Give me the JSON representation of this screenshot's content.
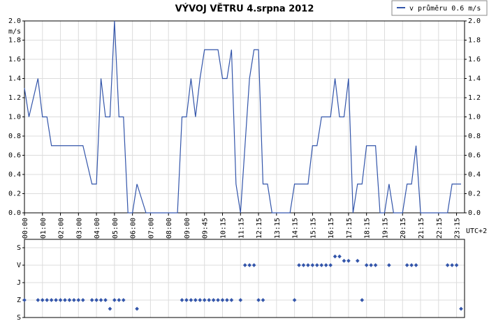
{
  "chart_data": [
    {
      "type": "line",
      "title": "VÝVOJ VĚTRU  4.srpna 2012",
      "y_unit": "m/s",
      "x_note": "UTC+2",
      "categories": [
        "00:00",
        null,
        null,
        null,
        "01:00",
        null,
        null,
        null,
        "02:00",
        null,
        null,
        null,
        "03:00",
        null,
        null,
        null,
        "04:00",
        null,
        null,
        null,
        "05:00",
        null,
        null,
        null,
        "06:00",
        null,
        null,
        null,
        "07:00",
        null,
        null,
        null,
        "08:00",
        null,
        null,
        null,
        "09:00",
        null,
        null,
        null,
        "09:45",
        null,
        null,
        null,
        "10:15",
        null,
        null,
        null,
        "11:15",
        null,
        null,
        null,
        "12:15",
        null,
        null,
        null,
        "13:15",
        null,
        null,
        null,
        "14:15",
        null,
        null,
        null,
        "15:15",
        null,
        null,
        null,
        "16:15",
        null,
        null,
        null,
        "17:15",
        null,
        null,
        null,
        "18:15",
        null,
        null,
        null,
        "19:15",
        null,
        null,
        null,
        "20:15",
        null,
        null,
        null,
        "21:15",
        null,
        null,
        null,
        "22:15",
        null,
        null,
        null,
        "23:15",
        null
      ],
      "series": [
        {
          "name": "v průměru 0.6 m/s",
          "color": "#3355aa",
          "values": [
            1.3,
            1.0,
            1.2,
            1.4,
            1.0,
            1.0,
            0.7,
            0.7,
            0.7,
            0.7,
            0.7,
            0.7,
            0.7,
            0.7,
            0.5,
            0.3,
            0.3,
            1.4,
            1.0,
            1.0,
            2.0,
            1.0,
            1.0,
            0.0,
            0.0,
            0.3,
            0.15,
            0.0,
            0.0,
            0.0,
            0.0,
            0.0,
            0.0,
            0.0,
            0.0,
            1.0,
            1.0,
            1.4,
            1.0,
            1.4,
            1.7,
            1.7,
            1.7,
            1.7,
            1.4,
            1.4,
            1.7,
            0.3,
            0.0,
            0.7,
            1.4,
            1.7,
            1.7,
            0.3,
            0.3,
            0.0,
            0.0,
            0.0,
            0.0,
            0.0,
            0.3,
            0.3,
            0.3,
            0.3,
            0.7,
            0.7,
            1.0,
            1.0,
            1.0,
            1.4,
            1.0,
            1.0,
            1.4,
            0.0,
            0.3,
            0.3,
            0.7,
            0.7,
            0.7,
            0.0,
            0.0,
            0.3,
            0.0,
            0.0,
            0.0,
            0.3,
            0.3,
            0.7,
            0.0,
            0.0,
            0.0,
            0.0,
            0.0,
            0.0,
            0.0,
            0.3,
            0.3,
            0.3
          ]
        }
      ],
      "ylim": [
        0,
        2
      ],
      "yticks": [
        {
          "value": 0,
          "label": "0.0"
        },
        0.2,
        0.4,
        0.6,
        0.8,
        {
          "value": 1,
          "label": "1.0"
        },
        1.2,
        1.4,
        1.6,
        1.8,
        {
          "value": 2,
          "label": "2.0"
        }
      ],
      "grid": true,
      "legend": "top-right"
    },
    {
      "type": "scatter",
      "color": "#3355aa",
      "values": [
        270,
        null,
        null,
        270,
        270,
        270,
        270,
        270,
        270,
        270,
        270,
        270,
        270,
        270,
        null,
        270,
        270,
        270,
        270,
        315,
        270,
        270,
        270,
        null,
        null,
        315,
        null,
        null,
        null,
        null,
        null,
        null,
        null,
        null,
        null,
        270,
        270,
        270,
        270,
        270,
        270,
        270,
        270,
        270,
        270,
        270,
        270,
        null,
        270,
        90,
        90,
        90,
        270,
        270,
        null,
        null,
        null,
        null,
        null,
        null,
        270,
        90,
        90,
        90,
        90,
        90,
        90,
        90,
        90,
        45,
        45,
        67.5,
        67.5,
        null,
        67.5,
        270,
        90,
        90,
        90,
        null,
        null,
        90,
        null,
        null,
        null,
        90,
        90,
        90,
        null,
        null,
        null,
        null,
        null,
        null,
        90,
        90,
        90,
        315
      ],
      "ylim": [
        360,
        0
      ],
      "yticks": [
        {
          "value": 0,
          "label": "S"
        },
        {
          "value": 90,
          "label": "V"
        },
        {
          "value": 180,
          "label": "J"
        },
        {
          "value": 270,
          "label": "Z"
        },
        {
          "value": 360,
          "label": "S"
        }
      ],
      "grid": true
    }
  ]
}
